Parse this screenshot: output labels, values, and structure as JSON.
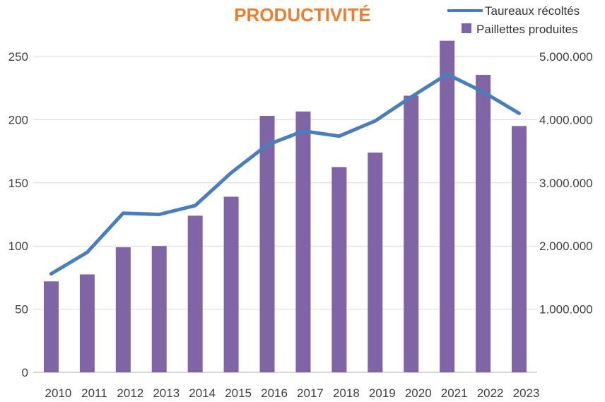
{
  "chart_data": {
    "type": "bar+line",
    "title": "PRODUCTIVITÉ",
    "categories": [
      "2010",
      "2011",
      "2012",
      "2013",
      "2014",
      "2015",
      "2016",
      "2017",
      "2018",
      "2019",
      "2020",
      "2021",
      "2022",
      "2023"
    ],
    "series": [
      {
        "name": "Paillettes produites",
        "type": "bar",
        "axis": "right",
        "values": [
          1440000,
          1550000,
          1980000,
          2000000,
          2480000,
          2780000,
          4060000,
          4130000,
          3250000,
          3480000,
          4380000,
          5250000,
          4710000,
          3900000
        ]
      },
      {
        "name": "Taureaux récoltés",
        "type": "line",
        "axis": "left",
        "values": [
          78,
          95,
          126,
          125,
          132,
          158,
          180,
          191,
          187,
          199,
          218,
          236,
          222,
          205
        ]
      }
    ],
    "left_axis": {
      "min": 0,
      "max": 250,
      "ticks": [
        0,
        50,
        100,
        150,
        200,
        250
      ],
      "tick_labels": [
        "0",
        "50",
        "100",
        "150",
        "200",
        "250"
      ]
    },
    "right_axis": {
      "min": 0,
      "max": 5000000,
      "ticks": [
        1000000,
        2000000,
        3000000,
        4000000,
        5000000
      ],
      "tick_labels": [
        "1.000.000",
        "2.000.000",
        "3.000.000",
        "4.000.000",
        "5.000.000"
      ]
    },
    "grid": true,
    "legend_position": "top-right"
  },
  "colors": {
    "title": "#ED7D31",
    "bar": "#7F64A6",
    "line": "#4A7EBB",
    "grid": "#D9D9D9",
    "axis": "#BFBFBF"
  }
}
